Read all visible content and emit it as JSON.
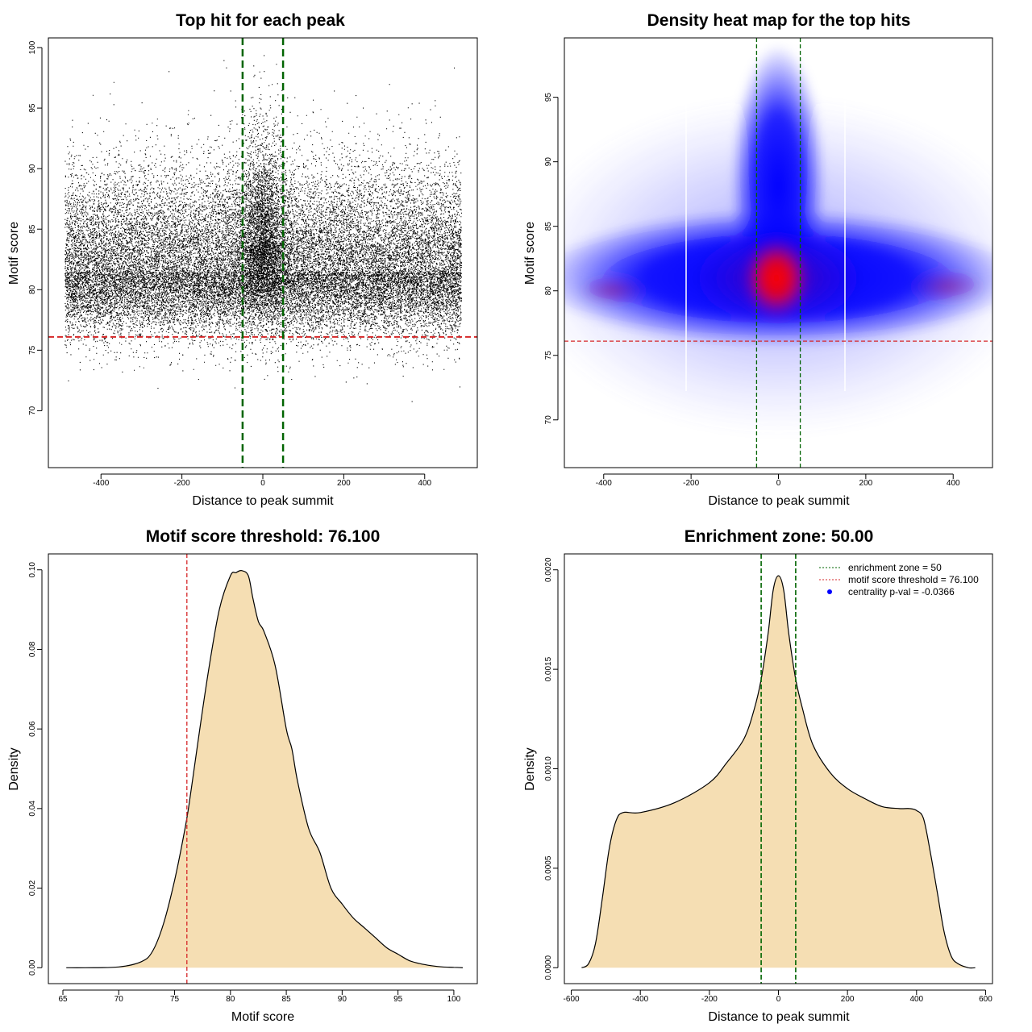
{
  "chart_data": [
    {
      "id": "scatter",
      "type": "scatter",
      "title": "Top hit for each peak",
      "xlabel": "Distance to peak summit",
      "ylabel": "Motif score",
      "xlim": [
        -530,
        530
      ],
      "ylim": [
        65.3,
        100.8
      ],
      "xticks": [
        -400,
        -200,
        0,
        200,
        400
      ],
      "yticks": [
        70,
        75,
        80,
        85,
        90,
        95,
        100
      ],
      "hline": {
        "y": 76.1,
        "color": "#d62728",
        "style": "dashed"
      },
      "vlines": [
        {
          "x": -50,
          "color": "#006400"
        },
        {
          "x": 50,
          "color": "#006400"
        }
      ],
      "point_count_approx": 60000,
      "x_range": [
        -490,
        490
      ],
      "score_mean": 81.5,
      "point_color": "#000000"
    },
    {
      "id": "heatmap",
      "type": "heatmap",
      "title": "Density heat map for the top hits",
      "xlabel": "Distance to peak summit",
      "ylabel": "Motif score",
      "xlim": [
        -490,
        490
      ],
      "ylim": [
        66.3,
        99.6
      ],
      "xticks": [
        -400,
        -200,
        0,
        200,
        400
      ],
      "yticks": [
        70,
        75,
        80,
        85,
        90,
        95
      ],
      "hline": {
        "y": 76.1,
        "color": "#d62728",
        "style": "dashed"
      },
      "vlines": [
        {
          "x": -50,
          "color": "#006400"
        },
        {
          "x": 50,
          "color": "#006400"
        }
      ],
      "colormap": [
        "#ffffff",
        "#0000ff",
        "#ff0000"
      ],
      "peak_density": {
        "x": 0,
        "y": 81
      }
    },
    {
      "id": "score_density",
      "type": "area",
      "title": "Motif score threshold: 76.100",
      "xlabel": "Motif score",
      "ylabel": "Density",
      "xlim": [
        63.7,
        102.1
      ],
      "ylim": [
        -0.004,
        0.104
      ],
      "xticks": [
        65,
        70,
        75,
        80,
        85,
        90,
        95,
        100
      ],
      "yticks": [
        0.0,
        0.02,
        0.04,
        0.06,
        0.08,
        0.1
      ],
      "ytick_labels": [
        "0.00",
        "0.02",
        "0.04",
        "0.06",
        "0.08",
        "0.10"
      ],
      "fill_color": "#f5deb3",
      "vline": {
        "x": 76.1,
        "color": "#d62728",
        "style": "dashed"
      },
      "x": [
        65.3,
        67,
        70,
        72,
        73,
        74,
        75,
        76,
        76.5,
        77,
        78,
        79,
        80,
        80.5,
        81,
        81.6,
        82,
        82.5,
        83,
        84,
        85,
        85.5,
        86,
        87,
        88,
        89,
        90,
        91,
        92,
        93,
        94,
        95,
        96,
        97,
        98,
        99,
        100,
        100.8
      ],
      "y": [
        0,
        0,
        0.0002,
        0.0015,
        0.004,
        0.011,
        0.022,
        0.036,
        0.045,
        0.055,
        0.074,
        0.09,
        0.0985,
        0.0993,
        0.0998,
        0.0985,
        0.093,
        0.087,
        0.0845,
        0.076,
        0.06,
        0.055,
        0.047,
        0.035,
        0.029,
        0.02,
        0.016,
        0.0125,
        0.01,
        0.0075,
        0.005,
        0.0034,
        0.0018,
        0.001,
        0.0005,
        0.0002,
        0.0001,
        0
      ]
    },
    {
      "id": "distance_density",
      "type": "area",
      "title": "Enrichment zone: 50.00",
      "xlabel": "Distance to peak summit",
      "ylabel": "Density",
      "xlim": [
        -620,
        620
      ],
      "ylim": [
        -8e-05,
        0.00208
      ],
      "xticks": [
        -600,
        -400,
        -200,
        0,
        200,
        400,
        600
      ],
      "yticks": [
        0,
        0.0005,
        0.001,
        0.0015,
        0.002
      ],
      "ytick_labels": [
        "0.0000",
        "0.0005",
        "0.0010",
        "0.0015",
        "0.0020"
      ],
      "fill_color": "#f5deb3",
      "vlines": [
        {
          "x": -50,
          "color": "#006400"
        },
        {
          "x": 50,
          "color": "#006400"
        }
      ],
      "x": [
        -570,
        -550,
        -530,
        -510,
        -490,
        -470,
        -450,
        -400,
        -300,
        -200,
        -150,
        -100,
        -70,
        -50,
        -30,
        -15,
        0,
        15,
        30,
        50,
        70,
        100,
        150,
        200,
        250,
        300,
        350,
        380,
        400,
        420,
        440,
        460,
        480,
        500,
        520,
        550,
        570
      ],
      "y": [
        0,
        2e-05,
        0.00012,
        0.00035,
        0.0006,
        0.00074,
        0.00078,
        0.00078,
        0.00083,
        0.00093,
        0.00103,
        0.00115,
        0.0013,
        0.00145,
        0.00168,
        0.0019,
        0.00197,
        0.0019,
        0.00168,
        0.00145,
        0.0013,
        0.00112,
        0.00098,
        0.0009,
        0.00085,
        0.00081,
        0.0008,
        0.0008,
        0.00079,
        0.00075,
        0.00058,
        0.00038,
        0.00018,
        6e-05,
        2e-05,
        0,
        0
      ],
      "legend": [
        {
          "label": "enrichment zone = 50",
          "color": "#006400",
          "marker": "dotted-line"
        },
        {
          "label": "motif score threshold = 76.100",
          "color": "#d62728",
          "marker": "dotted-line"
        },
        {
          "label": "centrality p-val = -0.0366",
          "color": "#0000ff",
          "marker": "dot"
        }
      ],
      "legend_position": "top-right"
    }
  ]
}
